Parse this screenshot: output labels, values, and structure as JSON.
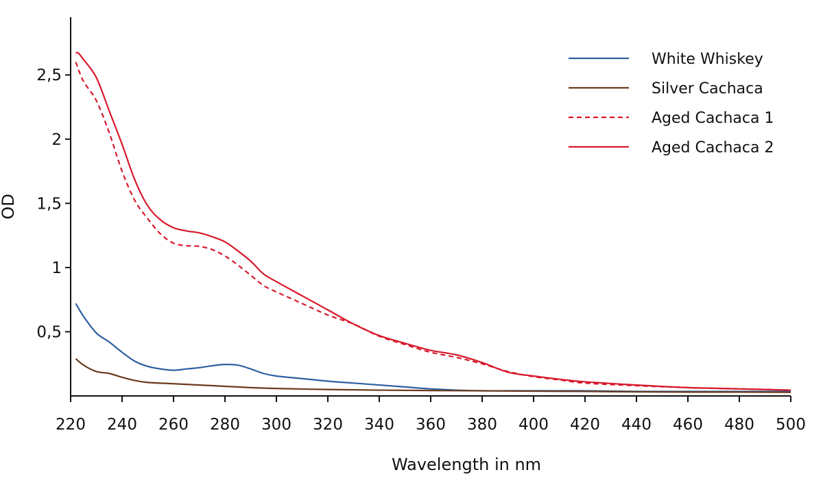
{
  "chart_data": {
    "type": "line",
    "title": "",
    "xlabel": "Wavelength in nm",
    "ylabel": "OD",
    "xlim": [
      220,
      500
    ],
    "ylim": [
      0,
      2.95
    ],
    "grid": false,
    "legend_position": "top-right",
    "x_ticks": [
      220,
      240,
      260,
      280,
      300,
      320,
      340,
      360,
      380,
      400,
      420,
      440,
      460,
      480,
      500
    ],
    "x_tick_labels": [
      "220",
      "240",
      "260",
      "280",
      "300",
      "320",
      "340",
      "360",
      "380",
      "400",
      "420",
      "440",
      "460",
      "480",
      "500"
    ],
    "y_ticks": [
      0.5,
      1,
      1.5,
      2,
      2.5
    ],
    "y_tick_labels": [
      "0,5",
      "1",
      "1,5",
      "2",
      "2,5"
    ],
    "series": [
      {
        "name": "White Whiskey",
        "color": "#2d5fa0",
        "dash": "solid",
        "x": [
          222,
          225,
          230,
          235,
          240,
          245,
          250,
          255,
          260,
          265,
          270,
          275,
          280,
          285,
          290,
          295,
          300,
          310,
          320,
          330,
          340,
          350,
          360,
          370,
          380,
          390,
          400,
          420,
          440,
          460,
          480,
          500
        ],
        "y": [
          0.72,
          0.62,
          0.49,
          0.42,
          0.34,
          0.27,
          0.23,
          0.21,
          0.2,
          0.21,
          0.22,
          0.235,
          0.245,
          0.24,
          0.21,
          0.175,
          0.155,
          0.135,
          0.115,
          0.1,
          0.085,
          0.07,
          0.055,
          0.045,
          0.04,
          0.04,
          0.04,
          0.04,
          0.035,
          0.035,
          0.035,
          0.035
        ]
      },
      {
        "name": "Silver Cachaca",
        "color": "#6b3a1c",
        "dash": "solid",
        "x": [
          222,
          225,
          230,
          235,
          240,
          245,
          250,
          260,
          270,
          280,
          290,
          300,
          320,
          340,
          360,
          380,
          400,
          420,
          440,
          460,
          480,
          500
        ],
        "y": [
          0.29,
          0.24,
          0.19,
          0.175,
          0.145,
          0.12,
          0.105,
          0.095,
          0.085,
          0.075,
          0.065,
          0.058,
          0.05,
          0.045,
          0.042,
          0.04,
          0.037,
          0.035,
          0.032,
          0.03,
          0.03,
          0.028
        ]
      },
      {
        "name": "Aged Cachaca 1",
        "color": "#d7182a",
        "dash": "dashed",
        "x": [
          222,
          225,
          230,
          235,
          240,
          245,
          250,
          255,
          260,
          265,
          270,
          275,
          280,
          285,
          290,
          295,
          300,
          310,
          320,
          330,
          340,
          350,
          360,
          370,
          380,
          390,
          400,
          410,
          420,
          440,
          460,
          480,
          500
        ],
        "y": [
          2.6,
          2.45,
          2.3,
          2.05,
          1.75,
          1.52,
          1.38,
          1.26,
          1.19,
          1.17,
          1.165,
          1.14,
          1.09,
          1.02,
          0.94,
          0.86,
          0.81,
          0.72,
          0.63,
          0.56,
          0.465,
          0.4,
          0.34,
          0.3,
          0.25,
          0.19,
          0.15,
          0.125,
          0.1,
          0.08,
          0.065,
          0.055,
          0.045
        ]
      },
      {
        "name": "Aged Cachaca 2",
        "color": "#d7182a",
        "dash": "solid",
        "x": [
          222,
          223,
          225,
          230,
          235,
          240,
          245,
          250,
          255,
          260,
          265,
          270,
          275,
          280,
          285,
          290,
          295,
          300,
          310,
          320,
          330,
          340,
          350,
          360,
          370,
          380,
          390,
          400,
          410,
          420,
          440,
          460,
          480,
          500
        ],
        "y": [
          2.67,
          2.67,
          2.62,
          2.48,
          2.22,
          1.96,
          1.68,
          1.48,
          1.37,
          1.31,
          1.285,
          1.27,
          1.24,
          1.2,
          1.13,
          1.05,
          0.95,
          0.89,
          0.78,
          0.67,
          0.56,
          0.47,
          0.41,
          0.355,
          0.32,
          0.26,
          0.185,
          0.155,
          0.13,
          0.11,
          0.085,
          0.065,
          0.055,
          0.045
        ]
      }
    ]
  }
}
